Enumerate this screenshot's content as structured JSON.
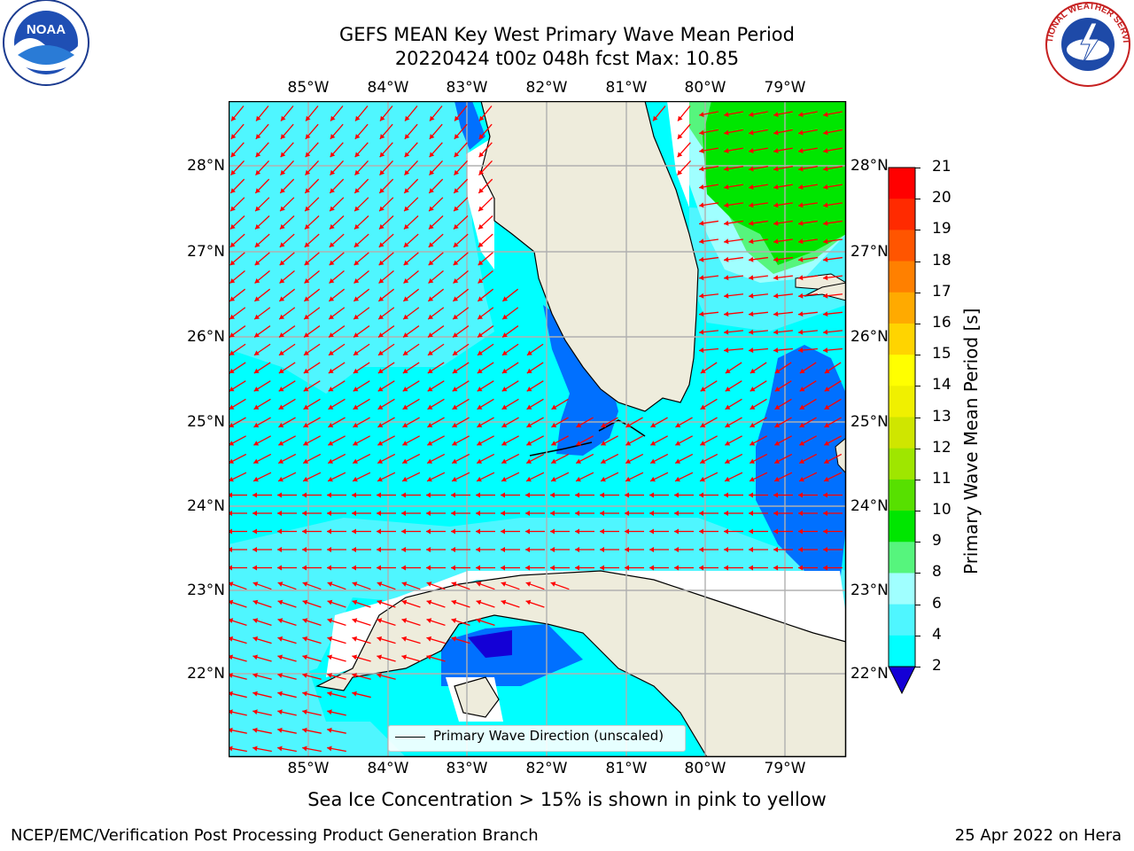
{
  "title": {
    "line1": "GEFS MEAN Key West Primary Wave Mean Period",
    "line2": "20220424 t00z 048h fcst   Max: 10.85"
  },
  "logos": {
    "left": "noaa-logo",
    "right": "national-weather-service-logo",
    "left_text": "NOAA",
    "right_text": "NATIONAL WEATHER SERVICE"
  },
  "map": {
    "lon_labels": [
      "85°W",
      "84°W",
      "83°W",
      "82°W",
      "81°W",
      "80°W",
      "79°W"
    ],
    "lat_labels": [
      "28°N",
      "27°N",
      "26°N",
      "25°N",
      "24°N",
      "23°N",
      "22°N"
    ],
    "land_color": "#eeecdc",
    "grid_color": "#b0b0b0",
    "arrow_color": "#ff0000",
    "legend": "Primary Wave Direction (unscaled)"
  },
  "colorbar": {
    "label": "Primary Wave Mean Period [s]",
    "ticks": [
      "21",
      "20",
      "19",
      "18",
      "17",
      "16",
      "15",
      "14",
      "13",
      "12",
      "11",
      "10",
      "9",
      "8",
      "6",
      "4",
      "2"
    ],
    "colors": [
      "#1400d6",
      "#0070ff",
      "#00ffff",
      "#4ff6ff",
      "#a0ffff",
      "#56f57d",
      "#00e600",
      "#57e000",
      "#9fe600",
      "#cfe600",
      "#f0f000",
      "#ffff00",
      "#ffd400",
      "#ffaa00",
      "#ff8000",
      "#ff5500",
      "#ff2a00",
      "#ff0000"
    ]
  },
  "notes": {
    "sea_ice": "Sea Ice Concentration > 15% is shown in pink to yellow",
    "footer_left": "NCEP/EMC/Verification Post Processing Product Generation Branch",
    "footer_right": "25 Apr 2022 on Hera"
  }
}
